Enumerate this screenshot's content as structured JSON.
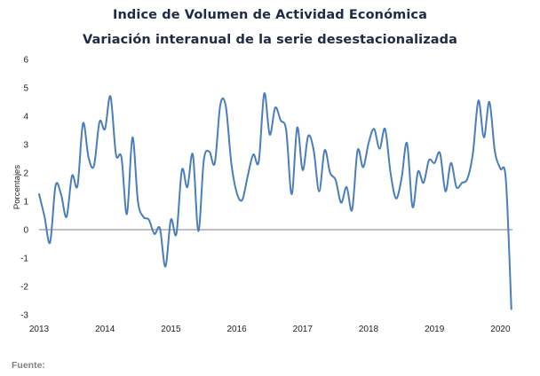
{
  "chart_data": {
    "type": "line",
    "title": "Indice de Volumen de  Actividad Económica",
    "subtitle": "Variación interanual de la serie desestacionalizada",
    "ylabel": "Porcentajes",
    "xlabel": "",
    "ylim": [
      -3,
      6
    ],
    "yticks": [
      "-3",
      "-2",
      "-1",
      "0",
      "1",
      "2",
      "3",
      "4",
      "5",
      "6"
    ],
    "xticks": [
      "2013",
      "2014",
      "2015",
      "2016",
      "2017",
      "2018",
      "2019",
      "2020"
    ],
    "grid": false,
    "legend": "none",
    "line_color": "#4a7ebb",
    "start_year": 2013,
    "series": [
      {
        "values": [
          1.25,
          0.45,
          -0.45,
          1.55,
          1.25,
          0.45,
          1.9,
          1.55,
          3.75,
          2.55,
          2.25,
          3.8,
          3.55,
          4.7,
          2.65,
          2.55,
          0.55,
          3.25,
          1.0,
          0.45,
          0.35,
          -0.15,
          0.05,
          -1.3,
          0.35,
          -0.15,
          2.1,
          1.5,
          2.65,
          -0.05,
          2.45,
          2.75,
          2.35,
          4.4,
          4.35,
          2.35,
          1.3,
          1.05,
          1.9,
          2.65,
          2.4,
          4.8,
          3.35,
          4.3,
          3.85,
          3.5,
          1.25,
          3.6,
          2.1,
          3.3,
          2.8,
          1.35,
          2.8,
          2.0,
          1.75,
          0.95,
          1.5,
          0.7,
          2.8,
          2.2,
          3.05,
          3.55,
          2.85,
          3.55,
          2.0,
          1.1,
          1.8,
          3.05,
          0.8,
          2.05,
          1.65,
          2.45,
          2.35,
          2.7,
          1.35,
          2.35,
          1.5,
          1.65,
          1.8,
          2.7,
          4.55,
          3.25,
          4.5,
          2.75,
          2.15,
          1.75,
          -2.8
        ]
      }
    ],
    "source_label": "Fuente:"
  }
}
